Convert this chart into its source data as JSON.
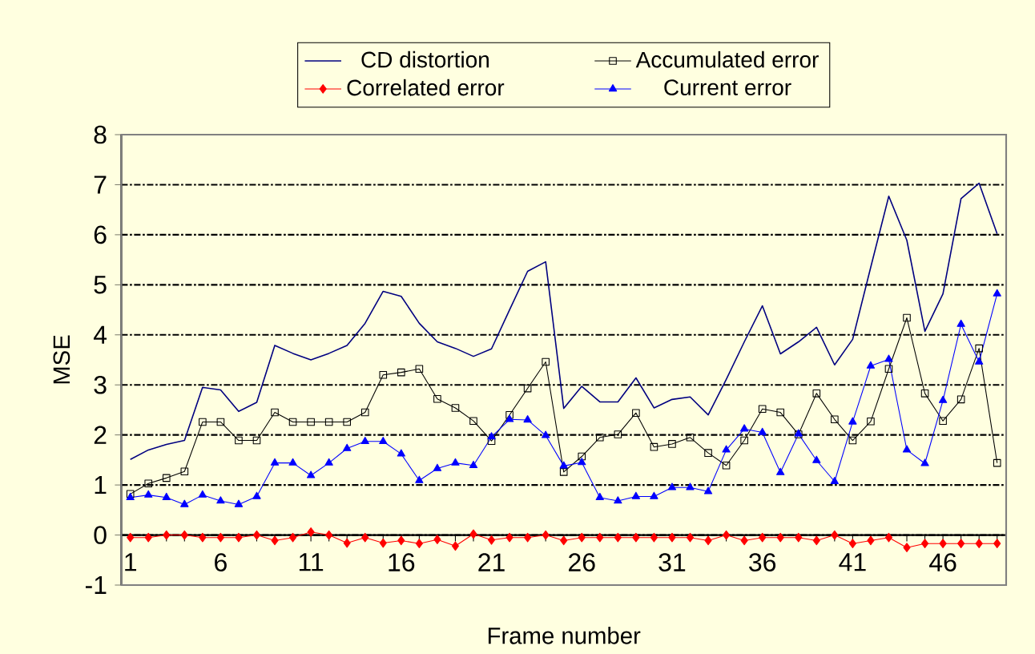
{
  "chart_data": {
    "type": "line",
    "xlabel": "Frame number",
    "ylabel": "MSE",
    "x": [
      1,
      2,
      3,
      4,
      5,
      6,
      7,
      8,
      9,
      10,
      11,
      12,
      13,
      14,
      15,
      16,
      17,
      18,
      19,
      20,
      21,
      22,
      23,
      24,
      25,
      26,
      27,
      28,
      29,
      30,
      31,
      32,
      33,
      34,
      35,
      36,
      37,
      38,
      39,
      40,
      41,
      42,
      43,
      44,
      45,
      46,
      47,
      48,
      49
    ],
    "series": [
      {
        "name": "CD distortion",
        "color": "#000080",
        "marker": "none",
        "values": [
          1.51,
          1.7,
          1.81,
          1.89,
          2.95,
          2.9,
          2.47,
          2.65,
          3.79,
          3.63,
          3.5,
          3.63,
          3.79,
          4.23,
          4.87,
          4.77,
          4.23,
          3.86,
          3.73,
          3.57,
          3.72,
          4.5,
          5.27,
          5.46,
          2.53,
          2.97,
          2.66,
          2.66,
          3.14,
          2.54,
          2.71,
          2.76,
          2.4,
          3.11,
          3.86,
          4.58,
          3.62,
          3.86,
          4.15,
          3.4,
          3.91,
          5.35,
          6.77,
          5.89,
          4.07,
          4.82,
          6.72,
          7.03,
          6.02
        ]
      },
      {
        "name": "Accumulated error",
        "color": "#000000",
        "marker": "square",
        "values": [
          0.82,
          1.03,
          1.14,
          1.27,
          2.26,
          2.26,
          1.89,
          1.89,
          2.45,
          2.26,
          2.26,
          2.26,
          2.26,
          2.45,
          3.2,
          3.25,
          3.32,
          2.72,
          2.54,
          2.28,
          1.88,
          2.4,
          2.93,
          3.46,
          1.26,
          1.57,
          1.95,
          2.01,
          2.44,
          1.76,
          1.82,
          1.95,
          1.64,
          1.39,
          1.89,
          2.52,
          2.45,
          2.01,
          2.83,
          2.31,
          1.89,
          2.27,
          3.32,
          4.34,
          2.83,
          2.28,
          2.71,
          3.73,
          1.44
        ]
      },
      {
        "name": "Correlated error",
        "color": "#ff0000",
        "marker": "diamond",
        "values": [
          -0.05,
          -0.05,
          0,
          0,
          -0.05,
          -0.05,
          -0.05,
          0,
          -0.11,
          -0.05,
          0.06,
          0,
          -0.16,
          -0.05,
          -0.16,
          -0.11,
          -0.17,
          -0.09,
          -0.22,
          0.02,
          -0.1,
          -0.05,
          -0.05,
          0,
          -0.11,
          -0.05,
          -0.05,
          -0.05,
          -0.05,
          -0.05,
          -0.05,
          -0.05,
          -0.11,
          0,
          -0.11,
          -0.05,
          -0.05,
          -0.05,
          -0.11,
          0,
          -0.17,
          -0.11,
          -0.05,
          -0.25,
          -0.17,
          -0.17,
          -0.17,
          -0.17,
          -0.17
        ]
      },
      {
        "name": "Current error",
        "color": "#0000ff",
        "marker": "triangle",
        "values": [
          0.75,
          0.8,
          0.75,
          0.61,
          0.8,
          0.68,
          0.61,
          0.77,
          1.44,
          1.44,
          1.19,
          1.44,
          1.73,
          1.87,
          1.87,
          1.62,
          1.09,
          1.33,
          1.44,
          1.39,
          1.96,
          2.31,
          2.3,
          1.99,
          1.38,
          1.45,
          0.75,
          0.68,
          0.77,
          0.77,
          0.95,
          0.95,
          0.87,
          1.7,
          2.12,
          2.05,
          1.25,
          2.02,
          1.49,
          1.07,
          2.26,
          3.38,
          3.51,
          1.7,
          1.43,
          2.69,
          4.21,
          3.46,
          4.82
        ]
      }
    ],
    "xlim": [
      0.5,
      49.5
    ],
    "ylim": [
      -1,
      8
    ],
    "xticks": [
      1,
      {
        "value": 2,
        "label": null
      },
      {
        "value": 3,
        "label": null
      },
      {
        "value": 4,
        "label": null
      },
      {
        "value": 5,
        "label": null
      },
      6,
      {
        "value": 7,
        "label": null
      },
      {
        "value": 8,
        "label": null
      },
      {
        "value": 9,
        "label": null
      },
      {
        "value": 10,
        "label": null
      },
      11,
      {
        "value": 12,
        "label": null
      },
      {
        "value": 13,
        "label": null
      },
      {
        "value": 14,
        "label": null
      },
      {
        "value": 15,
        "label": null
      },
      16,
      {
        "value": 17,
        "label": null
      },
      {
        "value": 18,
        "label": null
      },
      {
        "value": 19,
        "label": null
      },
      {
        "value": 20,
        "label": null
      },
      21,
      {
        "value": 22,
        "label": null
      },
      {
        "value": 23,
        "label": null
      },
      {
        "value": 24,
        "label": null
      },
      {
        "value": 25,
        "label": null
      },
      26,
      {
        "value": 27,
        "label": null
      },
      {
        "value": 28,
        "label": null
      },
      {
        "value": 29,
        "label": null
      },
      {
        "value": 30,
        "label": null
      },
      31,
      {
        "value": 32,
        "label": null
      },
      {
        "value": 33,
        "label": null
      },
      {
        "value": 34,
        "label": null
      },
      {
        "value": 35,
        "label": null
      },
      36,
      {
        "value": 37,
        "label": null
      },
      {
        "value": 38,
        "label": null
      },
      {
        "value": 39,
        "label": null
      },
      {
        "value": 40,
        "label": null
      },
      41,
      {
        "value": 42,
        "label": null
      },
      {
        "value": 43,
        "label": null
      },
      {
        "value": 44,
        "label": null
      },
      {
        "value": 45,
        "label": null
      },
      46,
      {
        "value": 47,
        "label": null
      },
      {
        "value": 48,
        "label": null
      },
      {
        "value": 49,
        "label": null
      }
    ],
    "yticks": [
      -1,
      0,
      1,
      2,
      3,
      4,
      5,
      6,
      7,
      8
    ],
    "grid": "y",
    "legend": "top",
    "line_style": "solid"
  }
}
